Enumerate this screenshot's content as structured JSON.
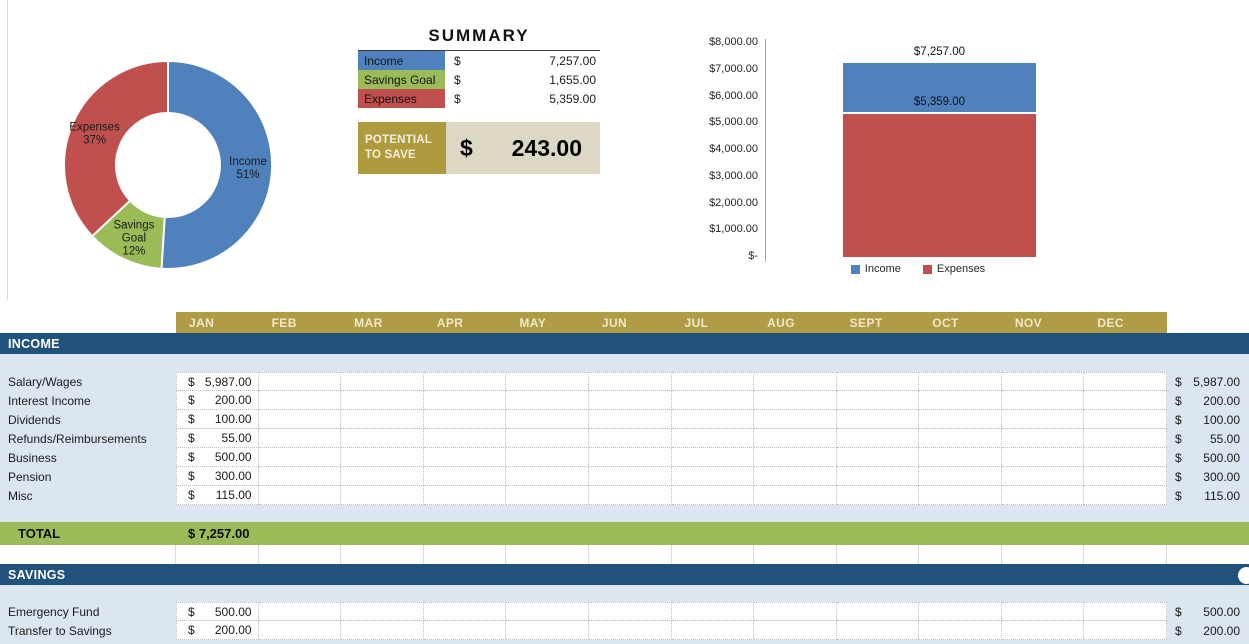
{
  "summary": {
    "title": "SUMMARY",
    "rows": [
      {
        "label": "Income",
        "currency": "$",
        "value": "7,257.00",
        "color": "#4F81BD"
      },
      {
        "label": "Savings Goal",
        "currency": "$",
        "value": "1,655.00",
        "color": "#9BBB59"
      },
      {
        "label": "Expenses",
        "currency": "$",
        "value": "5,359.00",
        "color": "#C0504D"
      }
    ],
    "potential": {
      "line1": "POTENTIAL",
      "line2": "TO SAVE",
      "currency": "$",
      "value": "243.00"
    }
  },
  "chart_data": [
    {
      "type": "pie",
      "subtype": "donut",
      "start": "top",
      "direction": "clockwise",
      "slices": [
        {
          "label": "Income",
          "pct": 51,
          "color": "#4F81BD",
          "label_lines": [
            "Income",
            "51%"
          ]
        },
        {
          "label": "Savings Goal",
          "pct": 12,
          "color": "#9BBB59",
          "label_lines": [
            "Savings",
            "Goal",
            "12%"
          ]
        },
        {
          "label": "Expenses",
          "pct": 37,
          "color": "#C0504D",
          "label_lines": [
            "Expenses",
            "37%"
          ]
        }
      ]
    },
    {
      "type": "bar",
      "stacked": true,
      "ylim": [
        0,
        8000
      ],
      "yticks": [
        "$8,000.00",
        "$7,000.00",
        "$6,000.00",
        "$5,000.00",
        "$4,000.00",
        "$3,000.00",
        "$2,000.00",
        "$1,000.00",
        "$-"
      ],
      "segments": [
        {
          "name": "Expenses",
          "value": 5359,
          "stack_top": 5359,
          "color": "#C0504D",
          "data_label": "$5,359.00"
        },
        {
          "name": "Income",
          "value": 1898,
          "stack_top": 7257,
          "color": "#4F81BD",
          "data_label": "$7,257.00"
        }
      ],
      "legend": [
        {
          "name": "Income",
          "color": "#4F81BD"
        },
        {
          "name": "Expenses",
          "color": "#C0504D"
        }
      ]
    }
  ],
  "table": {
    "currency": "$",
    "months": [
      "JAN",
      "FEB",
      "MAR",
      "APR",
      "MAY",
      "JUN",
      "JUL",
      "AUG",
      "SEPT",
      "OCT",
      "NOV",
      "DEC"
    ],
    "income": {
      "header": "INCOME",
      "rows": [
        {
          "label": "Salary/Wages",
          "jan": "5,987.00",
          "total": "5,987.00"
        },
        {
          "label": "Interest Income",
          "jan": "200.00",
          "total": "200.00"
        },
        {
          "label": "Dividends",
          "jan": "100.00",
          "total": "100.00"
        },
        {
          "label": "Refunds/Reimbursements",
          "jan": "55.00",
          "total": "55.00"
        },
        {
          "label": "Business",
          "jan": "500.00",
          "total": "500.00"
        },
        {
          "label": "Pension",
          "jan": "300.00",
          "total": "300.00"
        },
        {
          "label": "Misc",
          "jan": "115.00",
          "total": "115.00"
        }
      ],
      "total_label": "TOTAL",
      "total_value": "$ 7,257.00"
    },
    "savings": {
      "header": "SAVINGS",
      "rows": [
        {
          "label": "Emergency Fund",
          "jan": "500.00",
          "total": "500.00"
        },
        {
          "label": "Transfer to Savings",
          "jan": "200.00",
          "total": "200.00"
        }
      ]
    }
  },
  "colors": {
    "income_blue": "#4F81BD",
    "savings_green": "#9BBB59",
    "expenses_red": "#C0504D",
    "header_dark_blue": "#21527B",
    "light_blue_bg": "#DCE6F1",
    "month_gold": "#AF9C44",
    "potential_gold": "#AE9B3D",
    "potential_beige": "#DDD8C4",
    "total_green": "#9BBB59"
  }
}
